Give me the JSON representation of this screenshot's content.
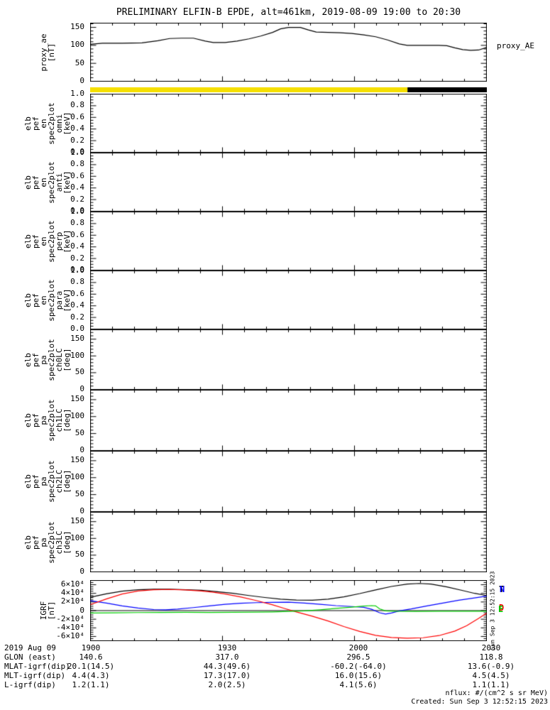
{
  "title": "PRELIMINARY ELFIN-B EPDE, alt=461km, 2019-08-09 19:00 to 20:30",
  "colors": {
    "frame": "#000000",
    "proxy_line": "#000000",
    "bar_yellow": "#f5df00",
    "bar_black": "#000000",
    "igrf_total": "#000000",
    "igrf_north": "#0000ff",
    "igrf_down": "#ff0000",
    "igrf_east": "#00cc00"
  },
  "right_labels": {
    "proxy_ae": "proxy_AE"
  },
  "igrf_legend": [
    {
      "text": "T",
      "color": "#000000"
    },
    {
      "text": "N",
      "color": "#0000ff"
    },
    {
      "text": "D",
      "color": "#ff0000"
    },
    {
      "text": "E",
      "color": "#00cc00"
    }
  ],
  "created_vertical": "Sun Sep  3 12:52:15 2023",
  "footer": {
    "nflux": "nflux: #/(cm^2 s sr MeV)",
    "created": "Created: Sun Sep  3 12:52:15 2023"
  },
  "x_axis": {
    "start": "19:00",
    "end": "20:30",
    "major_fracs": [
      0,
      0.33333,
      0.66667,
      1
    ],
    "minor_intervals": 18
  },
  "bottom_axis": {
    "rows": [
      {
        "label": "2019 Aug 09",
        "cells": [
          "1900",
          "1930",
          "2000",
          "2030"
        ]
      },
      {
        "label": "GLON (east)",
        "cells": [
          "140.6",
          "317.0",
          "296.5",
          "118.8"
        ]
      },
      {
        "label": "MLAT-igrf(dip)",
        "cells": [
          "20.1(14.5)",
          "44.3(49.6)",
          "-60.2(-64.0)",
          "13.6(-0.9)"
        ]
      },
      {
        "label": "MLT-igrf(dip)",
        "cells": [
          "4.4(4.3)",
          "17.3(17.0)",
          "16.0(15.6)",
          "4.5(4.5)"
        ]
      },
      {
        "label": "L-igrf(dip)",
        "cells": [
          "1.2(1.1)",
          "2.0(2.5)",
          "4.1(5.6)",
          "1.1(1.1)"
        ]
      }
    ]
  },
  "chart_data": [
    {
      "type": "line",
      "name": "proxy_ae",
      "ylabel": "proxy_ae\n[nT]",
      "ylim": [
        0,
        162
      ],
      "yticks": [
        0,
        50,
        100,
        150
      ],
      "ytick_labels": [
        "0",
        "50",
        "100",
        "150"
      ],
      "yminor_step": 10,
      "series": [
        {
          "name": "proxy_AE",
          "color": "#000000",
          "x": [
            0,
            0.03,
            0.08,
            0.13,
            0.17,
            0.2,
            0.23,
            0.26,
            0.29,
            0.31,
            0.34,
            0.37,
            0.4,
            0.43,
            0.46,
            0.48,
            0.5,
            0.53,
            0.55,
            0.57,
            0.6,
            0.63,
            0.66,
            0.69,
            0.72,
            0.75,
            0.78,
            0.8,
            0.84,
            0.88,
            0.9,
            0.92,
            0.94,
            0.96,
            0.98,
            1.0
          ],
          "y": [
            103,
            106,
            106,
            107,
            113,
            119,
            120,
            120,
            112,
            108,
            108,
            112,
            118,
            126,
            136,
            146,
            150,
            150,
            143,
            137,
            136,
            135,
            133,
            129,
            124,
            115,
            104,
            100,
            100,
            100,
            99,
            93,
            88,
            86,
            87,
            94
          ]
        }
      ]
    },
    {
      "type": "bar",
      "name": "data-availability-bar",
      "segments": [
        {
          "color": "#f5df00",
          "from": 0.0,
          "to": 0.8
        },
        {
          "color": "#000000",
          "from": 0.8,
          "to": 1.0
        }
      ]
    },
    {
      "type": "empty",
      "name": "elb_pef_en_spec2plot_omni",
      "ylabel": "elb\npef\nen\nspec2plot\nomni\n[keV]",
      "ylim": [
        0,
        1
      ],
      "yticks": [
        0.0,
        0.2,
        0.4,
        0.6,
        0.8,
        1.0
      ],
      "ytick_labels": [
        "0.0",
        "0.2",
        "0.4",
        "0.6",
        "0.8",
        "1.0"
      ],
      "yminor_step": 0.05,
      "series": []
    },
    {
      "type": "empty",
      "name": "elb_pef_en_spec2plot_anti",
      "ylabel": "elb\npef\nen\nspec2plot\nanti\n[keV]",
      "ylim": [
        0,
        1
      ],
      "yticks": [
        0.0,
        0.2,
        0.4,
        0.6,
        0.8,
        1.0
      ],
      "ytick_labels": [
        "0.0",
        "0.2",
        "0.4",
        "0.6",
        "0.8",
        "1.0"
      ],
      "yminor_step": 0.05,
      "series": []
    },
    {
      "type": "empty",
      "name": "elb_pef_en_spec2plot_perp",
      "ylabel": "elb\npef\nen\nspec2plot\nperp\n[keV]",
      "ylim": [
        0,
        1
      ],
      "yticks": [
        0.0,
        0.2,
        0.4,
        0.6,
        0.8,
        1.0
      ],
      "ytick_labels": [
        "0.0",
        "0.2",
        "0.4",
        "0.6",
        "0.8",
        "1.0"
      ],
      "yminor_step": 0.05,
      "series": []
    },
    {
      "type": "empty",
      "name": "elb_pef_en_spec2plot_para",
      "ylabel": "elb\npef\nen\nspec2plot\npara\n[keV]",
      "ylim": [
        0,
        1
      ],
      "yticks": [
        0.0,
        0.2,
        0.4,
        0.6,
        0.8,
        1.0
      ],
      "ytick_labels": [
        "0.0",
        "0.2",
        "0.4",
        "0.6",
        "0.8",
        "1.0"
      ],
      "yminor_step": 0.05,
      "series": []
    },
    {
      "type": "empty",
      "name": "elb_pef_pa_spec2plot_ch0LC",
      "ylabel": "elb\npef\npa\nspec2plot\nch0LC\n[deg]",
      "ylim": [
        0,
        178
      ],
      "yticks": [
        0,
        50,
        100,
        150
      ],
      "ytick_labels": [
        "0",
        "50",
        "100",
        "150"
      ],
      "yminor_step": 10,
      "series": []
    },
    {
      "type": "empty",
      "name": "elb_pef_pa_spec2plot_ch1LC",
      "ylabel": "elb\npef\npa\nspec2plot\nch1LC\n[deg]",
      "ylim": [
        0,
        178
      ],
      "yticks": [
        0,
        50,
        100,
        150
      ],
      "ytick_labels": [
        "0",
        "50",
        "100",
        "150"
      ],
      "yminor_step": 10,
      "series": []
    },
    {
      "type": "empty",
      "name": "elb_pef_pa_spec2plot_ch2LC",
      "ylabel": "elb\npef\npa\nspec2plot\nch2LC\n[deg]",
      "ylim": [
        0,
        178
      ],
      "yticks": [
        0,
        50,
        100,
        150
      ],
      "ytick_labels": [
        "0",
        "50",
        "100",
        "150"
      ],
      "yminor_step": 10,
      "series": []
    },
    {
      "type": "empty",
      "name": "elb_pef_pa_spec2plot_ch3LC",
      "ylabel": "elb\npef\npa\nspec2plot\nch3LC\n[deg]",
      "ylim": [
        0,
        178
      ],
      "yticks": [
        0,
        50,
        100,
        150
      ],
      "ytick_labels": [
        "0",
        "50",
        "100",
        "150"
      ],
      "yminor_step": 10,
      "series": []
    },
    {
      "type": "line",
      "name": "igrf",
      "ylabel": "IGRF\n[nT]",
      "ylim": [
        -70000,
        70000
      ],
      "yticks": [
        -60000,
        -40000,
        -20000,
        0,
        20000,
        40000,
        60000
      ],
      "ytick_labels": [
        "-6×10⁴",
        "-4×10⁴",
        "-2×10⁴",
        "0",
        "2×10⁴",
        "4×10⁴",
        "6×10⁴"
      ],
      "yminor_step": 5000,
      "zero_line": true,
      "series": [
        {
          "name": "T",
          "color": "#000000",
          "x": [
            0,
            0.04,
            0.08,
            0.12,
            0.16,
            0.2,
            0.24,
            0.28,
            0.32,
            0.36,
            0.4,
            0.44,
            0.48,
            0.52,
            0.56,
            0.6,
            0.64,
            0.68,
            0.72,
            0.76,
            0.8,
            0.83,
            0.86,
            0.9,
            0.94,
            0.97,
            1.0
          ],
          "y": [
            31000,
            39000,
            45000,
            48500,
            49500,
            49500,
            48500,
            47000,
            44000,
            40000,
            35000,
            30500,
            26500,
            24500,
            24000,
            26500,
            32000,
            39500,
            48000,
            56000,
            61500,
            63000,
            61500,
            55000,
            46500,
            40000,
            35000
          ]
        },
        {
          "name": "N",
          "color": "#0000ff",
          "x": [
            0,
            0.04,
            0.08,
            0.12,
            0.16,
            0.19,
            0.22,
            0.26,
            0.3,
            0.34,
            0.38,
            0.42,
            0.46,
            0.5,
            0.54,
            0.58,
            0.62,
            0.66,
            0.69,
            0.71,
            0.73,
            0.745,
            0.76,
            0.78,
            0.81,
            0.85,
            0.89,
            0.93,
            0.97,
            1.0
          ],
          "y": [
            23000,
            17500,
            11000,
            6000,
            2500,
            2000,
            3500,
            7000,
            11000,
            14500,
            17000,
            18500,
            19200,
            19500,
            17500,
            14500,
            11500,
            9500,
            7500,
            3000,
            -5000,
            -8000,
            -5500,
            -500,
            4000,
            11000,
            17500,
            24000,
            29500,
            33500
          ]
        },
        {
          "name": "D",
          "color": "#ff0000",
          "x": [
            0,
            0.04,
            0.08,
            0.12,
            0.16,
            0.2,
            0.24,
            0.28,
            0.31,
            0.34,
            0.38,
            0.42,
            0.46,
            0.49,
            0.52,
            0.56,
            0.6,
            0.64,
            0.68,
            0.72,
            0.76,
            0.8,
            0.84,
            0.88,
            0.92,
            0.95,
            0.98,
            1.0
          ],
          "y": [
            14000,
            27000,
            38500,
            45500,
            48500,
            49000,
            48000,
            45500,
            42500,
            38500,
            31500,
            23000,
            13500,
            5000,
            -3000,
            -13000,
            -24000,
            -37000,
            -48500,
            -57500,
            -62500,
            -64000,
            -63000,
            -58000,
            -47500,
            -35000,
            -18000,
            -6000
          ]
        },
        {
          "name": "E",
          "color": "#00cc00",
          "x": [
            0,
            0.06,
            0.12,
            0.18,
            0.24,
            0.3,
            0.36,
            0.42,
            0.46,
            0.5,
            0.54,
            0.58,
            0.62,
            0.66,
            0.69,
            0.71,
            0.72,
            0.73,
            0.745,
            0.77,
            0.82,
            0.88,
            0.94,
            1.0
          ],
          "y": [
            -5500,
            -5000,
            -4500,
            -4200,
            -4000,
            -4200,
            -4000,
            -3500,
            -3000,
            -2000,
            -500,
            2000,
            5000,
            8000,
            10500,
            11500,
            11000,
            4000,
            -500,
            -1500,
            -1800,
            -1500,
            -1500,
            -1500
          ]
        }
      ]
    }
  ]
}
